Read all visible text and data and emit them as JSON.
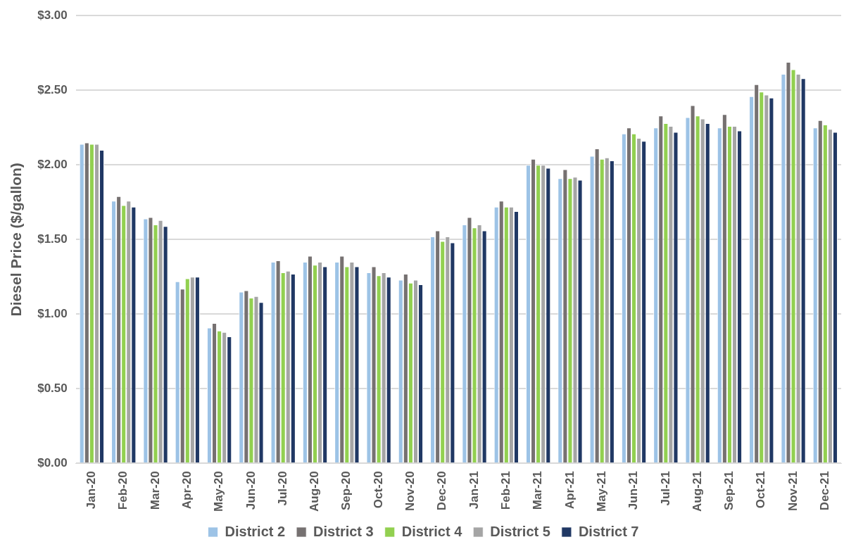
{
  "chart_data": {
    "type": "bar",
    "ylabel": "Diesel Price ($/gallon)",
    "categories": [
      "Jan-20",
      "Feb-20",
      "Mar-20",
      "Apr-20",
      "May-20",
      "Jun-20",
      "Jul-20",
      "Aug-20",
      "Sep-20",
      "Oct-20",
      "Nov-20",
      "Dec-20",
      "Jan-21",
      "Feb-21",
      "Mar-21",
      "Apr-21",
      "May-21",
      "Jun-21",
      "Jul-21",
      "Aug-21",
      "Sep-21",
      "Oct-21",
      "Nov-21",
      "Dec-21"
    ],
    "series": [
      {
        "name": "District 2",
        "color": "#9dc3e6",
        "values": [
          2.14,
          1.76,
          1.64,
          1.22,
          0.91,
          1.15,
          1.35,
          1.35,
          1.35,
          1.28,
          1.23,
          1.52,
          1.6,
          1.72,
          2.0,
          1.91,
          2.06,
          2.21,
          2.25,
          2.32,
          2.25,
          2.46,
          2.61,
          2.25
        ]
      },
      {
        "name": "District 3",
        "color": "#767171",
        "values": [
          2.15,
          1.79,
          1.65,
          1.17,
          0.94,
          1.16,
          1.36,
          1.39,
          1.39,
          1.32,
          1.27,
          1.56,
          1.65,
          1.76,
          2.04,
          1.97,
          2.11,
          2.25,
          2.33,
          2.4,
          2.34,
          2.54,
          2.69,
          2.3
        ]
      },
      {
        "name": "District 4",
        "color": "#92d050",
        "values": [
          2.14,
          1.73,
          1.6,
          1.24,
          0.89,
          1.11,
          1.28,
          1.33,
          1.32,
          1.26,
          1.21,
          1.49,
          1.58,
          1.72,
          2.0,
          1.91,
          2.04,
          2.21,
          2.28,
          2.33,
          2.26,
          2.49,
          2.64,
          2.27
        ]
      },
      {
        "name": "District 5",
        "color": "#a5a5a5",
        "values": [
          2.14,
          1.76,
          1.63,
          1.25,
          0.88,
          1.12,
          1.29,
          1.35,
          1.35,
          1.28,
          1.23,
          1.52,
          1.6,
          1.72,
          2.0,
          1.92,
          2.05,
          2.18,
          2.26,
          2.31,
          2.26,
          2.47,
          2.61,
          2.24
        ]
      },
      {
        "name": "District 7",
        "color": "#203864",
        "values": [
          2.1,
          1.72,
          1.59,
          1.25,
          0.85,
          1.08,
          1.27,
          1.32,
          1.32,
          1.25,
          1.2,
          1.48,
          1.56,
          1.69,
          1.98,
          1.9,
          2.03,
          2.16,
          2.22,
          2.28,
          2.23,
          2.45,
          2.58,
          2.22
        ]
      }
    ],
    "ylim": [
      0,
      3
    ],
    "yticks": [
      {
        "value": 0,
        "label": "$0.00"
      },
      {
        "value": 0.5,
        "label": "$0.50"
      },
      {
        "value": 1,
        "label": "$1.00"
      },
      {
        "value": 1.5,
        "label": "$1.50"
      },
      {
        "value": 2,
        "label": "$2.00"
      },
      {
        "value": 2.5,
        "label": "$2.50"
      },
      {
        "value": 3,
        "label": "$3.00"
      }
    ],
    "grid": "y",
    "legend": "bottom"
  }
}
